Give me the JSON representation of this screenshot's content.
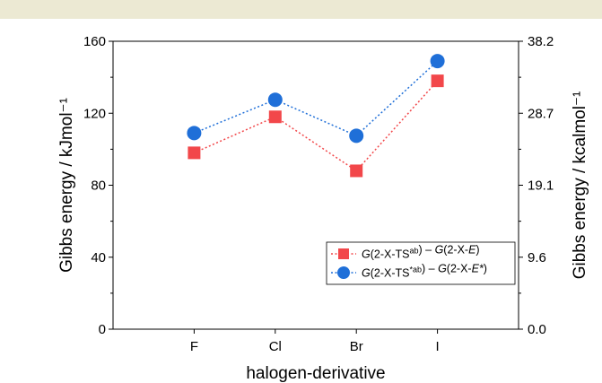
{
  "page": {
    "band_color": "#ece9d3"
  },
  "chart_data": {
    "type": "line",
    "categories": [
      "F",
      "Cl",
      "Br",
      "I"
    ],
    "xlabel": "halogen-derivative",
    "ylabel": "Gibbs energy / kJmol⁻¹",
    "y2label": "Gibbs energy / kcalmol⁻¹",
    "ylim": [
      0,
      160
    ],
    "yticks": [
      0,
      40,
      80,
      120,
      160
    ],
    "y2ticks": [
      "0.0",
      "9.6",
      "19.1",
      "28.7",
      "38.2"
    ],
    "grid": false,
    "legend_position": "lower-right",
    "series": [
      {
        "name": "G(2-X-TSᵃᵇ) – G(2-X-E)",
        "legend_parts": [
          {
            "t": "G",
            "i": true
          },
          {
            "t": "(2-X-TS"
          },
          {
            "t": "ab",
            "sup": true
          },
          {
            "t": ") – "
          },
          {
            "t": "G",
            "i": true
          },
          {
            "t": "(2-X-"
          },
          {
            "t": "E",
            "i": true
          },
          {
            "t": ")"
          }
        ],
        "values": [
          98,
          118,
          88,
          138
        ],
        "color": "#f2474a",
        "marker": "square",
        "linestyle": "dotted"
      },
      {
        "name": "G(2-X-TS*ᵃᵇ) – G(2-X-E*)",
        "legend_parts": [
          {
            "t": "G",
            "i": true
          },
          {
            "t": "(2-X-TS"
          },
          {
            "t": "*ab",
            "sup": true
          },
          {
            "t": ") – "
          },
          {
            "t": "G",
            "i": true
          },
          {
            "t": "(2-X-"
          },
          {
            "t": "E*",
            "i": true
          },
          {
            "t": ")"
          }
        ],
        "values": [
          109,
          127.5,
          107.5,
          149
        ],
        "color": "#1f6fd8",
        "marker": "circle",
        "linestyle": "dotted"
      }
    ]
  }
}
